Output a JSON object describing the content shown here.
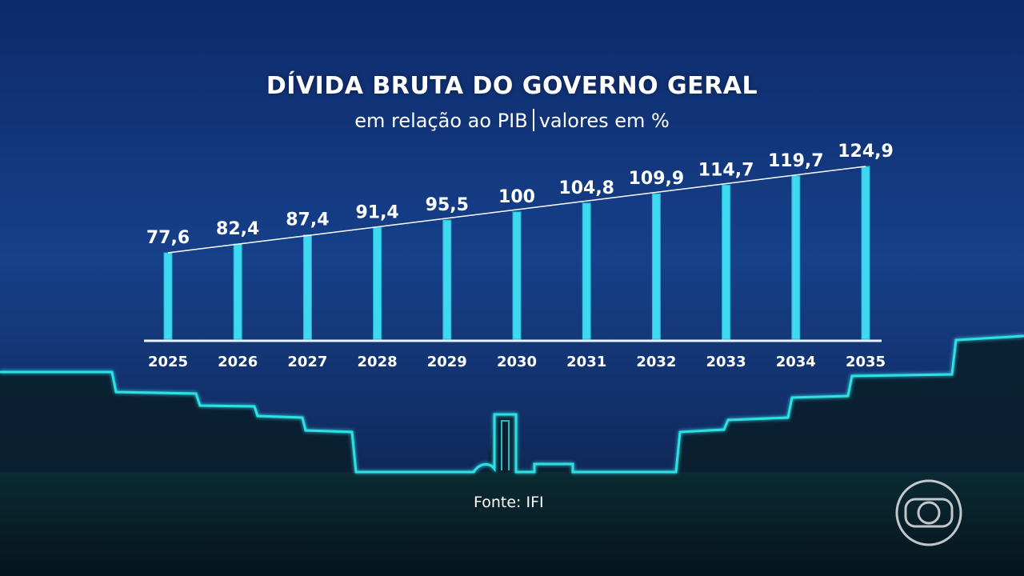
{
  "chart_data": {
    "type": "bar",
    "title": "DÍVIDA BRUTA DO GOVERNO GERAL",
    "subtitle_left": "em relação ao PIB",
    "subtitle_right": "valores em %",
    "categories": [
      "2025",
      "2026",
      "2027",
      "2028",
      "2029",
      "2030",
      "2031",
      "2032",
      "2033",
      "2034",
      "2035"
    ],
    "values": [
      77.6,
      82.4,
      87.4,
      91.4,
      95.5,
      100,
      104.8,
      109.9,
      114.7,
      119.7,
      124.9
    ],
    "value_labels": [
      "77,6",
      "82,4",
      "87,4",
      "91,4",
      "95,5",
      "100",
      "104,8",
      "109,9",
      "114,7",
      "119,7",
      "124,9"
    ],
    "trend_line": true,
    "legend": "none",
    "grid": false
  },
  "source": "Fonte: IFI",
  "colors": {
    "bar": "#3fd8f0",
    "bar_edge": "#1ab6d6",
    "skyline_glow": "#2fe0e6",
    "text": "#ffffff"
  },
  "logo_icon": "globo-logo-icon"
}
